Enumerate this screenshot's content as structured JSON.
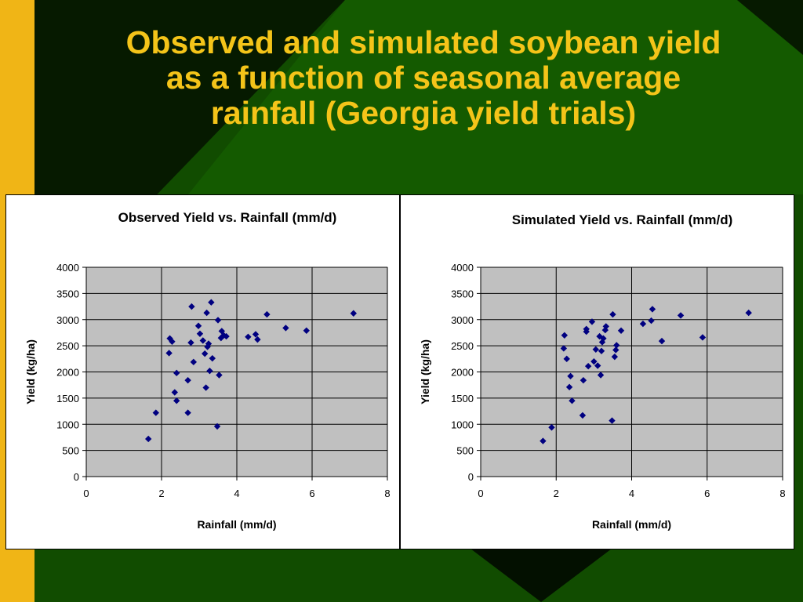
{
  "slide": {
    "title_lines": [
      "Observed and simulated soybean yield",
      "as a function of seasonal average",
      "rainfall (Georgia yield trials)"
    ]
  },
  "colors": {
    "background_dark": "#0a2400",
    "background_green": "#145a00",
    "left_bar": "#f0b516",
    "title": "#f4c419",
    "plot_area": "#c0c0c0",
    "gridline": "#000000",
    "marker": "#000080"
  },
  "chart_data": [
    {
      "type": "scatter",
      "title": "Observed Yield vs. Rainfall (mm/d)",
      "xlabel": "Rainfall (mm/d)",
      "ylabel": "Yield (kg/ha)",
      "xlim": [
        0,
        8
      ],
      "ylim": [
        0,
        4000
      ],
      "x_ticks": [
        0,
        2,
        4,
        6,
        8
      ],
      "y_ticks": [
        0,
        500,
        1000,
        1500,
        2000,
        2500,
        3000,
        3500,
        4000
      ],
      "grid": true,
      "marker": "diamond",
      "x": [
        1.65,
        1.85,
        2.2,
        2.22,
        2.28,
        2.35,
        2.4,
        2.4,
        2.7,
        2.7,
        2.78,
        2.8,
        2.85,
        2.98,
        3.02,
        3.1,
        3.15,
        3.18,
        3.2,
        3.22,
        3.25,
        3.28,
        3.32,
        3.35,
        3.48,
        3.5,
        3.53,
        3.58,
        3.6,
        3.65,
        3.72,
        4.3,
        4.5,
        4.55,
        4.8,
        5.3,
        5.85,
        7.1
      ],
      "y": [
        720,
        1220,
        2360,
        2640,
        2580,
        1610,
        1450,
        1980,
        1220,
        1840,
        2560,
        3250,
        2190,
        2880,
        2730,
        2600,
        2350,
        1700,
        3130,
        2480,
        2540,
        2020,
        3330,
        2260,
        960,
        2990,
        1940,
        2650,
        2780,
        2700,
        2680,
        2670,
        2720,
        2620,
        3100,
        2840,
        2790,
        3120
      ]
    },
    {
      "type": "scatter",
      "title": "Simulated Yield vs. Rainfall (mm/d)",
      "xlabel": "Rainfall (mm/d)",
      "ylabel": "Yield (kg/ha)",
      "xlim": [
        0,
        8
      ],
      "ylim": [
        0,
        4000
      ],
      "x_ticks": [
        0,
        2,
        4,
        6,
        8
      ],
      "y_ticks": [
        0,
        500,
        1000,
        1500,
        2000,
        2500,
        3000,
        3500,
        4000
      ],
      "grid": true,
      "marker": "diamond",
      "x": [
        1.65,
        1.88,
        2.2,
        2.22,
        2.28,
        2.35,
        2.38,
        2.42,
        2.7,
        2.72,
        2.8,
        2.8,
        2.85,
        2.95,
        3.0,
        3.05,
        3.1,
        3.15,
        3.18,
        3.2,
        3.22,
        3.25,
        3.3,
        3.32,
        3.48,
        3.5,
        3.55,
        3.58,
        3.6,
        3.72,
        4.3,
        4.52,
        4.55,
        4.8,
        5.3,
        5.88,
        7.1
      ],
      "y": [
        680,
        940,
        2450,
        2700,
        2250,
        1710,
        1920,
        1450,
        1170,
        1840,
        2770,
        2820,
        2110,
        2960,
        2200,
        2430,
        2120,
        2680,
        1940,
        2400,
        2570,
        2640,
        2800,
        2870,
        1070,
        3100,
        2290,
        2420,
        2510,
        2790,
        2920,
        2980,
        3200,
        2590,
        3080,
        2660,
        3130
      ]
    }
  ]
}
